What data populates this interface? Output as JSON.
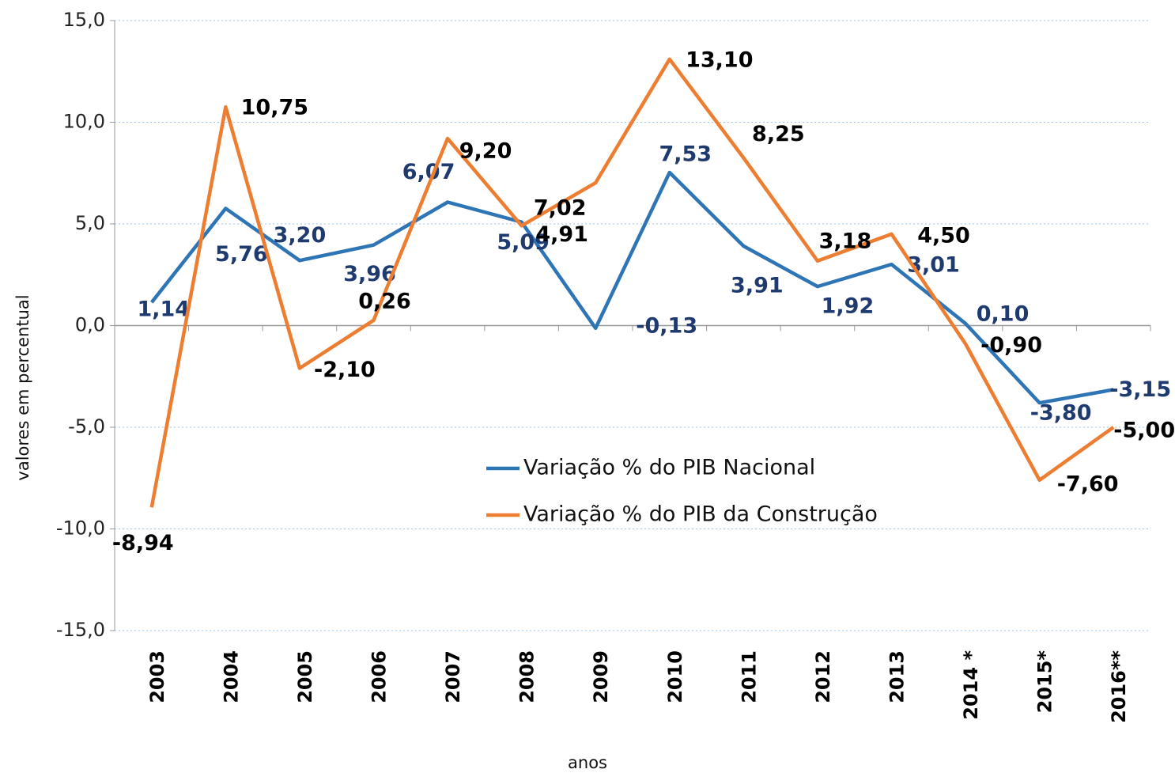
{
  "chart_data": {
    "type": "line",
    "y_label": "valores em percentual",
    "x_label": "anos",
    "categories": [
      "2003",
      "2004",
      "2005",
      "2006",
      "2007",
      "2008",
      "2009",
      "2010",
      "2011",
      "2012",
      "2013",
      "2014 *",
      "2015*",
      "2016**"
    ],
    "series": [
      {
        "name": "Variação % do PIB Nacional",
        "color": "#2e75b6",
        "values": [
          1.14,
          5.76,
          3.2,
          3.96,
          6.07,
          5.09,
          -0.13,
          7.53,
          3.91,
          1.92,
          3.01,
          0.1,
          -3.8,
          -3.15
        ],
        "value_labels": [
          "1,14",
          "5,76",
          "3,20",
          "3,96",
          "6,07",
          "5,09",
          "-0,13",
          "7,53",
          "3,91",
          "1,92",
          "3,01",
          "0,10",
          "-3,80",
          "-3,15"
        ]
      },
      {
        "name": "Variação % do PIB da Construção",
        "color": "#ed7d31",
        "values": [
          -8.94,
          10.75,
          -2.1,
          0.26,
          9.2,
          4.91,
          7.02,
          13.1,
          8.25,
          3.18,
          4.5,
          -0.9,
          -7.6,
          -5.0
        ],
        "value_labels": [
          "-8,94",
          "10,75",
          "-2,10",
          "0,26",
          "9,20",
          "4,91",
          "7,02",
          "13,10",
          "8,25",
          "3,18",
          "4,50",
          "-0,90",
          "-7,60",
          "-5,00"
        ]
      }
    ],
    "ylim": [
      -15,
      15
    ],
    "yticks": [
      {
        "value": -15,
        "label": "-15,0"
      },
      {
        "value": -10,
        "label": "-10,0"
      },
      {
        "value": -5,
        "label": "-5,0"
      },
      {
        "value": 0,
        "label": "0,0"
      },
      {
        "value": 5,
        "label": "5,0"
      },
      {
        "value": 10,
        "label": "10,0"
      },
      {
        "value": 15,
        "label": "15,0"
      }
    ],
    "grid": true
  }
}
